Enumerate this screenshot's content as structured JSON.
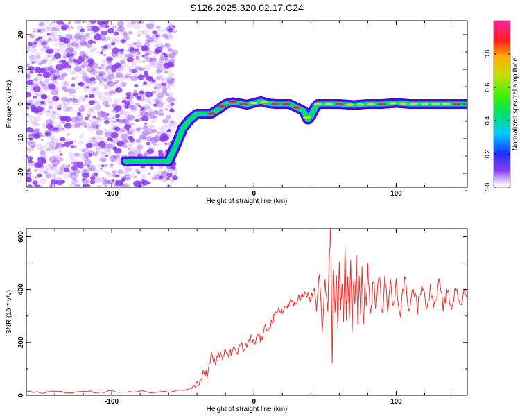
{
  "title": "S126.2025.320.02.17.C24",
  "colors": {
    "snr_line": "#e8322e",
    "ridge_gradient": [
      "#5a00c8",
      "#2030ff",
      "#00c8ff",
      "#00e060",
      "#c0e000",
      "#ffd000",
      "#ff2020"
    ],
    "noise_dots": "#8a3cf0"
  },
  "chart_data": [
    {
      "type": "heatmap",
      "title": "S126.2025.320.02.17.C24",
      "xlabel": "Height of straight line (km)",
      "ylabel": "Frequency (Hz)",
      "xlim": [
        -160,
        150
      ],
      "ylim": [
        -24,
        24
      ],
      "x_ticks": [
        -100,
        0,
        100
      ],
      "y_ticks": [
        -20,
        -10,
        0,
        10,
        20
      ],
      "x_tick_labels": [
        "-100",
        "0",
        "100"
      ],
      "y_tick_labels": [
        "-20",
        "-10",
        "0",
        "10",
        "20"
      ],
      "colorbar": {
        "label": "Normalized spectral amplitude",
        "range": [
          0,
          1
        ],
        "ticks": [
          0.0,
          0.2,
          0.4,
          0.6,
          0.8
        ],
        "tick_labels": [
          "0.0",
          "0.2",
          "0.4",
          "0.6",
          "0.8"
        ],
        "colormap": "rainbow"
      },
      "noise_region_x": [
        -160,
        -55
      ],
      "ridge": {
        "x": [
          -90,
          -60,
          -55,
          -50,
          -45,
          -40,
          -30,
          -25,
          -20,
          -15,
          -10,
          -5,
          0,
          5,
          10,
          15,
          20,
          25,
          30,
          35,
          38,
          40,
          43,
          45,
          50,
          55,
          60,
          70,
          80,
          90,
          100,
          110,
          120,
          130,
          140,
          150
        ],
        "freq": [
          -16.5,
          -16.5,
          -12,
          -7,
          -4.5,
          -2.8,
          -2.8,
          -1.5,
          0,
          0.5,
          0.2,
          -0.2,
          0.3,
          0.8,
          0.2,
          0,
          0,
          0,
          -1,
          -2,
          -4.5,
          -3.5,
          -1,
          0,
          0,
          0,
          0,
          -0.3,
          0,
          0,
          0.3,
          0,
          0,
          0,
          0,
          0
        ]
      }
    },
    {
      "type": "line",
      "xlabel": "Height of straight line (km)",
      "ylabel": "SNR (10 * v/v)",
      "xlim": [
        -160,
        150
      ],
      "ylim": [
        0,
        630
      ],
      "x_ticks": [
        -100,
        0,
        100
      ],
      "y_ticks": [
        0,
        200,
        400,
        600
      ],
      "x_tick_labels": [
        "-100",
        "0",
        "100"
      ],
      "y_tick_labels": [
        "0",
        "200",
        "400",
        "600"
      ],
      "series": [
        {
          "x": [
            -160,
            -150,
            -140,
            -130,
            -120,
            -110,
            -100,
            -90,
            -80,
            -70,
            -60,
            -50,
            -45,
            -40,
            -38,
            -35,
            -33,
            -30,
            -27,
            -25,
            -22,
            -20,
            -17,
            -15,
            -12,
            -10,
            -7,
            -5,
            -2,
            0,
            3,
            5,
            8,
            10,
            13,
            15,
            18,
            20,
            23,
            25,
            28,
            30,
            33,
            35,
            38,
            40,
            42,
            44,
            46,
            48,
            50,
            52,
            53,
            54,
            55,
            56,
            57,
            58,
            59,
            60,
            61,
            62,
            63,
            64,
            65,
            66,
            67,
            68,
            69,
            70,
            71,
            72,
            73,
            74,
            75,
            76,
            77,
            78,
            79,
            80,
            82,
            84,
            86,
            88,
            90,
            92,
            94,
            96,
            98,
            100,
            103,
            106,
            109,
            112,
            115,
            118,
            121,
            124,
            127,
            130,
            133,
            136,
            139,
            142,
            145,
            148,
            150
          ],
          "y": [
            12,
            10,
            14,
            11,
            13,
            12,
            15,
            11,
            13,
            12,
            14,
            18,
            30,
            55,
            48,
            95,
            80,
            150,
            120,
            165,
            130,
            170,
            150,
            180,
            145,
            200,
            170,
            185,
            215,
            190,
            230,
            210,
            250,
            260,
            280,
            300,
            320,
            325,
            330,
            350,
            340,
            365,
            370,
            375,
            380,
            360,
            410,
            320,
            470,
            240,
            420,
            340,
            520,
            628,
            105,
            480,
            300,
            470,
            240,
            510,
            330,
            430,
            260,
            560,
            300,
            460,
            280,
            500,
            260,
            440,
            340,
            510,
            270,
            455,
            330,
            470,
            250,
            440,
            330,
            480,
            300,
            440,
            320,
            470,
            300,
            430,
            330,
            460,
            320,
            420,
            310,
            450,
            330,
            410,
            330,
            430,
            340,
            400,
            330,
            420,
            340,
            390,
            330,
            410,
            350,
            380,
            390
          ]
        }
      ]
    }
  ]
}
